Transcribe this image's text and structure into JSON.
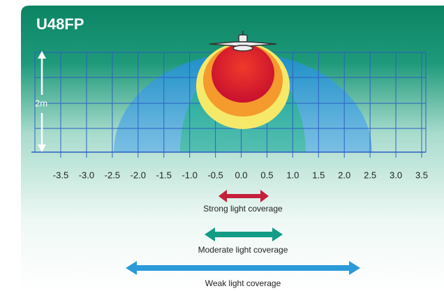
{
  "title": "U48FP",
  "height_label": "2m",
  "distance_labels": [
    "-3.5",
    "-3.0",
    "-2.5",
    "-2.0",
    "-1.5",
    "-1.0",
    "-0.5",
    "0.0",
    "0.5",
    "1.0",
    "1.5",
    "2.0",
    "2.5",
    "3.0",
    "3.5"
  ],
  "legend": {
    "strong": "Strong light coverage",
    "moderate": "Moderate light coverage",
    "weak": "Weak light coverage"
  }
}
